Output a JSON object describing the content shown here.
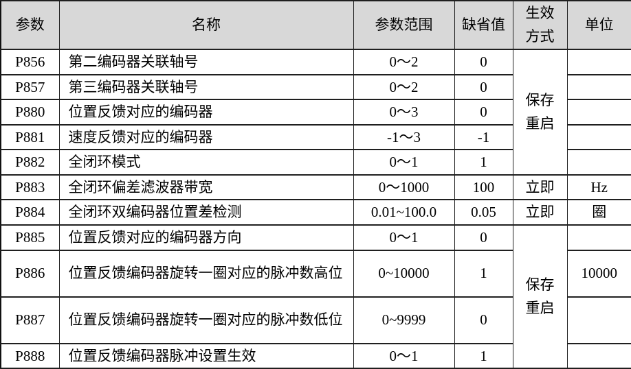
{
  "colors": {
    "header_bg": "#d8d8d8",
    "border": "#1f1f1f",
    "text": "#000000",
    "background": "#ffffff"
  },
  "table": {
    "headers": {
      "param": "参数",
      "name": "名称",
      "range": "参数范围",
      "default": "缺省值",
      "effect": "生效方式",
      "unit": "单位"
    },
    "rows": [
      {
        "param": "P856",
        "name": "第二编码器关联轴号",
        "range": "0～2",
        "default": "0",
        "effect": {
          "label": "保存重启",
          "rowspan": 5
        },
        "unit": ""
      },
      {
        "param": "P857",
        "name": "第三编码器关联轴号",
        "range": "0～2",
        "default": "0",
        "effect": null,
        "unit": ""
      },
      {
        "param": "P880",
        "name": "位置反馈对应的编码器",
        "range": "0～3",
        "default": "0",
        "effect": null,
        "unit": ""
      },
      {
        "param": "P881",
        "name": "速度反馈对应的编码器",
        "range": "-1～3",
        "default": "-1",
        "effect": null,
        "unit": ""
      },
      {
        "param": "P882",
        "name": "全闭环模式",
        "range": "0～1",
        "default": "1",
        "effect": null,
        "unit": ""
      },
      {
        "param": "P883",
        "name": "全闭环偏差滤波器带宽",
        "range": "0～1000",
        "default": "100",
        "effect": {
          "label": "立即",
          "rowspan": 1
        },
        "unit": "Hz"
      },
      {
        "param": "P884",
        "name": "全闭环双编码器位置差检测",
        "range": "0.01~100.0",
        "default": "0.05",
        "effect": {
          "label": "立即",
          "rowspan": 1
        },
        "unit": "圈"
      },
      {
        "param": "P885",
        "name": "位置反馈对应的编码器方向",
        "range": "0～1",
        "default": "0",
        "effect": {
          "label": "保存重启",
          "rowspan": 4
        },
        "unit": ""
      },
      {
        "param": "P886",
        "name": "位置反馈编码器旋转一圈对应的脉冲数高位",
        "range": "0~10000",
        "default": "1",
        "effect": null,
        "unit": "10000"
      },
      {
        "param": "P887",
        "name": "位置反馈编码器旋转一圈对应的脉冲数低位",
        "range": "0~9999",
        "default": "0",
        "effect": null,
        "unit": ""
      },
      {
        "param": "P888",
        "name": "位置反馈编码器脉冲设置生效",
        "range": "0～1",
        "default": "1",
        "effect": null,
        "unit": ""
      }
    ]
  }
}
